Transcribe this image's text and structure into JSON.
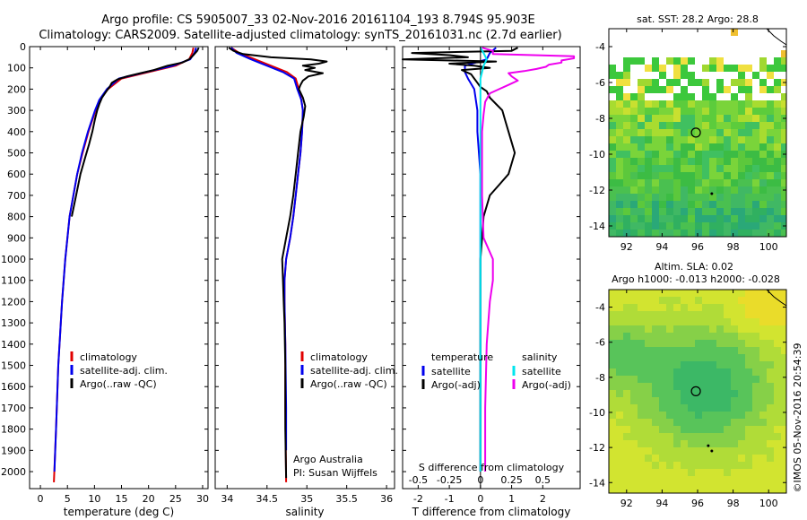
{
  "header": {
    "line1": "Argo profile: CS 5905007_33 02-Nov-2016 20161104_193 8.794S 95.903E",
    "line2": "Climatology: CARS2009. Satellite-adjusted climatology: synTS_20161031.nc (2.7d earlier)"
  },
  "side_stamp": "©IMOS 05-Nov-2016 20:54:39",
  "colors": {
    "climatology": "#e00000",
    "satellite": "#0000ee",
    "argo": "#000000",
    "salinity_sat": "#00e5ee",
    "salinity_argo": "#ee00ee"
  },
  "chart_data": [
    {
      "id": "temperature",
      "type": "line",
      "xlabel": "temperature (deg C)",
      "ylabel": "",
      "xlim": [
        -2,
        31
      ],
      "ylim": [
        2080,
        0
      ],
      "xticks": [
        0,
        5,
        10,
        15,
        20,
        25,
        30
      ],
      "xtick_labels": [
        "0",
        "5",
        "10",
        "15",
        "20",
        "25",
        "30"
      ],
      "yticks": [
        0,
        100,
        200,
        300,
        400,
        500,
        600,
        700,
        800,
        900,
        1000,
        1100,
        1200,
        1300,
        1400,
        1500,
        1600,
        1700,
        1800,
        1900,
        2000
      ],
      "ytick_labels": [
        "0",
        "100",
        "200",
        "300",
        "400",
        "500",
        "600",
        "700",
        "800",
        "900",
        "1000",
        "1100",
        "1200",
        "1300",
        "1400",
        "1500",
        "1600",
        "1700",
        "1800",
        "1900",
        "2000"
      ],
      "legend": {
        "placement": "lower-right",
        "entries": [
          "climatology",
          "satellite-adj. clim.",
          "Argo(..raw -QC)"
        ]
      },
      "series": [
        {
          "name": "climatology",
          "color": "#e00000",
          "depth": [
            5,
            30,
            60,
            90,
            120,
            150,
            200,
            250,
            300,
            400,
            500,
            600,
            800,
            1000,
            1200,
            1500,
            1800,
            2050
          ],
          "values": [
            28.3,
            28.1,
            27.5,
            25,
            20,
            15,
            12.5,
            11,
            10.2,
            8.9,
            7.8,
            6.8,
            5.4,
            4.6,
            4.0,
            3.3,
            2.9,
            2.5
          ]
        },
        {
          "name": "satellite-adj. clim.",
          "color": "#0000ee",
          "depth": [
            5,
            30,
            60,
            90,
            120,
            150,
            200,
            250,
            300,
            400,
            500,
            600,
            800,
            1000,
            1200,
            1500,
            1800,
            2000
          ],
          "values": [
            28.8,
            28.5,
            27.7,
            24.5,
            19.5,
            14.5,
            12.3,
            10.9,
            10.1,
            8.8,
            7.7,
            6.8,
            5.4,
            4.6,
            4.0,
            3.3,
            2.9,
            2.6
          ]
        },
        {
          "name": "Argo(..raw -QC)",
          "color": "#000000",
          "depth": [
            5,
            20,
            40,
            60,
            75,
            90,
            110,
            125,
            140,
            155,
            170,
            190,
            210,
            240,
            270,
            300,
            340,
            400,
            460,
            520,
            600,
            700,
            800
          ],
          "values": [
            29.3,
            29.0,
            28.3,
            27.5,
            26.2,
            23.5,
            21,
            18.5,
            16,
            14.2,
            13.2,
            12.8,
            12.2,
            11.4,
            10.9,
            10.5,
            10.1,
            9.6,
            9.0,
            8.3,
            7.4,
            6.6,
            5.8
          ]
        }
      ]
    },
    {
      "id": "salinity",
      "type": "line",
      "xlabel": "salinity",
      "ylabel": "",
      "xlim": [
        33.85,
        36.1
      ],
      "ylim": [
        2080,
        0
      ],
      "xticks": [
        34,
        34.5,
        35,
        35.5,
        36
      ],
      "xtick_labels": [
        "34",
        "34.5",
        "35",
        "35.5",
        "36"
      ],
      "legend": {
        "placement": "lower-right",
        "entries": [
          "climatology",
          "satellite-adj. clim.",
          "Argo(..raw -QC)"
        ]
      },
      "annotation": [
        "Argo Australia",
        "PI: Susan Wijffels"
      ],
      "series": [
        {
          "name": "climatology",
          "color": "#e00000",
          "depth": [
            5,
            30,
            60,
            90,
            120,
            150,
            200,
            250,
            300,
            400,
            500,
            600,
            700,
            800,
            900,
            1000,
            1100,
            1200,
            1400,
            1700,
            2050
          ],
          "values": [
            34.05,
            34.15,
            34.35,
            34.55,
            34.75,
            34.86,
            34.9,
            34.93,
            34.95,
            34.94,
            34.92,
            34.89,
            34.86,
            34.83,
            34.79,
            34.74,
            34.72,
            34.72,
            34.73,
            34.73,
            34.74
          ]
        },
        {
          "name": "satellite-adj. clim.",
          "color": "#0000ee",
          "depth": [
            5,
            30,
            60,
            90,
            120,
            150,
            200,
            250,
            300,
            400,
            500,
            600,
            700,
            800,
            900,
            1000,
            1100,
            1200,
            1400,
            1700,
            1900
          ],
          "values": [
            34.05,
            34.12,
            34.3,
            34.5,
            34.7,
            34.84,
            34.88,
            34.93,
            34.95,
            34.94,
            34.92,
            34.89,
            34.86,
            34.83,
            34.79,
            34.74,
            34.72,
            34.72,
            34.73,
            34.74,
            34.74
          ]
        },
        {
          "name": "Argo(..raw -QC)",
          "color": "#000000",
          "depth": [
            5,
            20,
            35,
            50,
            60,
            70,
            80,
            90,
            100,
            110,
            125,
            140,
            160,
            180,
            200,
            240,
            280,
            330,
            400,
            500,
            600,
            700,
            800,
            900,
            1000,
            1100,
            1200,
            1300,
            1500,
            1800,
            2030
          ],
          "values": [
            34.02,
            34.08,
            34.2,
            34.55,
            35.05,
            35.25,
            35.15,
            34.95,
            35.1,
            34.98,
            35.2,
            35.02,
            34.95,
            34.92,
            34.9,
            34.95,
            34.98,
            34.96,
            34.92,
            34.89,
            34.86,
            34.83,
            34.79,
            34.74,
            34.69,
            34.7,
            34.71,
            34.72,
            34.73,
            34.73,
            34.74
          ]
        }
      ]
    },
    {
      "id": "differences",
      "type": "line",
      "xlabel": "T difference from climatology",
      "xlabel_top": "S difference from climatology",
      "xlim": [
        -2.5,
        3.2
      ],
      "ylim": [
        2080,
        0
      ],
      "xticks": [
        -2,
        -1,
        0,
        1,
        2
      ],
      "xtick_labels": [
        "-2",
        "-1",
        "0",
        "1",
        "2"
      ],
      "sticks": [
        -2.0,
        -1.0,
        0.0,
        1.0,
        2.0
      ],
      "stick_labels": [
        "-0.5",
        "-0.25",
        "0",
        "0.25",
        "0.5"
      ],
      "legend": {
        "placement": "lower-right",
        "left_title": "temperature",
        "right_title": "salinity",
        "entries": [
          "satellite",
          "Argo(-adj)",
          "satellite",
          "Argo(-adj)"
        ]
      },
      "series": [
        {
          "name": "satellite",
          "quantity": "temperature",
          "color": "#0000ee",
          "depth": [
            5,
            30,
            60,
            90,
            120,
            150,
            200,
            300,
            400,
            600,
            800,
            1000,
            1500,
            2000
          ],
          "values": [
            0.5,
            0.3,
            0.2,
            -0.5,
            -0.5,
            -0.4,
            -0.2,
            -0.1,
            -0.1,
            0,
            0,
            0,
            0,
            0
          ]
        },
        {
          "name": "Argo(-adj)",
          "quantity": "temperature",
          "color": "#000000",
          "depth": [
            5,
            20,
            30,
            40,
            50,
            60,
            70,
            80,
            90,
            100,
            110,
            130,
            150,
            170,
            190,
            210,
            240,
            270,
            300,
            350,
            400,
            450,
            500,
            550,
            600,
            650,
            700,
            800,
            900,
            1000,
            1200,
            1500,
            2000
          ],
          "values": [
            1.2,
            1.0,
            -2.2,
            -1.0,
            -0.4,
            -2.5,
            0.5,
            -1.0,
            -0.2,
            0.3,
            -0.6,
            -0.3,
            -0.2,
            -0.1,
            0,
            0.2,
            0.3,
            0.5,
            0.7,
            0.8,
            0.9,
            1.0,
            1.1,
            1.0,
            0.9,
            0.6,
            0.3,
            0.1,
            0.05,
            0,
            0,
            0,
            0
          ]
        },
        {
          "name": "satellite",
          "quantity": "salinity",
          "color": "#00e5ee",
          "depth": [
            5,
            30,
            60,
            90,
            120,
            150,
            200,
            300,
            400,
            600,
            800,
            1000,
            1500,
            2000
          ],
          "values": [
            0.0,
            0.1,
            0.2,
            0.1,
            0.05,
            0.0,
            0.0,
            0.0,
            0.0,
            0.0,
            0.0,
            0.0,
            0.0,
            0.0
          ]
        },
        {
          "name": "Argo(-adj)",
          "quantity": "salinity",
          "color": "#ee00ee",
          "depth": [
            5,
            20,
            35,
            45,
            55,
            65,
            75,
            85,
            95,
            105,
            115,
            125,
            140,
            160,
            180,
            200,
            220,
            260,
            320,
            400,
            500,
            700,
            900,
            1000,
            1100,
            1200,
            1400,
            1700,
            2000
          ],
          "values": [
            0.05,
            0.4,
            0.4,
            3.0,
            3.0,
            2.6,
            2.6,
            2.2,
            2.1,
            1.8,
            1.4,
            0.9,
            1.0,
            1.2,
            0.9,
            0.6,
            0.3,
            0.15,
            0.1,
            0.05,
            0.05,
            0.05,
            0.1,
            0.4,
            0.4,
            0.3,
            0.2,
            0.15,
            0.15
          ]
        }
      ]
    },
    {
      "id": "sst-map",
      "type": "heatmap",
      "title": "sat. SST: 28.2 Argo: 28.8",
      "xlim": [
        91,
        101
      ],
      "ylim": [
        -14.6,
        -3
      ],
      "xticks": [
        92,
        94,
        96,
        98,
        100
      ],
      "xtick_labels": [
        "92",
        "94",
        "96",
        "98",
        "100"
      ],
      "yticks": [
        -4,
        -6,
        -8,
        -10,
        -12,
        -14
      ],
      "ytick_labels": [
        "-4",
        "-6",
        "-8",
        "-10",
        "-12",
        "-14"
      ],
      "float_position": [
        95.903,
        -8.794
      ],
      "track_points": [
        [
          96.8,
          -12.2
        ]
      ]
    },
    {
      "id": "sla-map",
      "type": "heatmap",
      "title": "Altim. SLA: 0.02",
      "subtitle": "Argo h1000: -0.013 h2000: -0.028",
      "xlim": [
        91,
        101
      ],
      "ylim": [
        -14.6,
        -3
      ],
      "xticks": [
        92,
        94,
        96,
        98,
        100
      ],
      "xtick_labels": [
        "92",
        "94",
        "96",
        "98",
        "100"
      ],
      "yticks": [
        -4,
        -6,
        -8,
        -10,
        -12,
        -14
      ],
      "ytick_labels": [
        "-4",
        "-6",
        "-8",
        "-10",
        "-12",
        "-14"
      ],
      "float_position": [
        95.903,
        -8.794
      ],
      "track_points": [
        [
          96.8,
          -12.2
        ],
        [
          96.6,
          -11.9
        ]
      ]
    }
  ]
}
